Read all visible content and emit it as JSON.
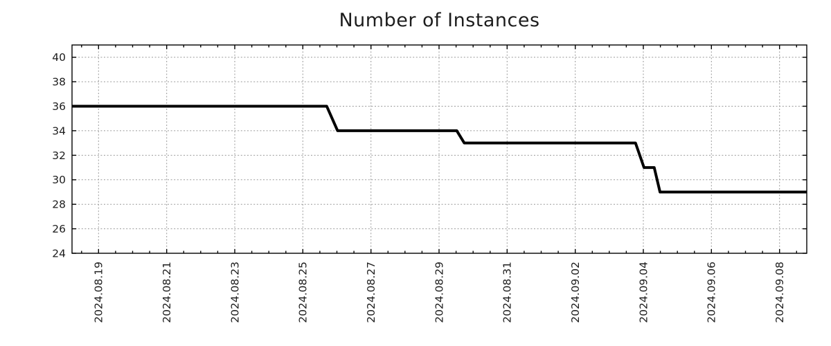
{
  "chart_data": {
    "type": "line",
    "title": "Number of Instances",
    "background": "#ffffff",
    "x_axis": {
      "epoch": "day 0 = 2024-08-19 00:00",
      "tick_labels": [
        "2024.08.19",
        "2024.08.21",
        "2024.08.23",
        "2024.08.25",
        "2024.08.27",
        "2024.08.29",
        "2024.08.31",
        "2024.09.02",
        "2024.09.04",
        "2024.09.06",
        "2024.09.08"
      ],
      "tick_days": [
        0,
        2,
        4,
        6,
        8,
        10,
        12,
        14,
        16,
        18,
        20
      ],
      "minor_tick_interval_days": 0.5,
      "range_days": [
        -0.78,
        20.8
      ]
    },
    "y_axis": {
      "ticks": [
        24,
        26,
        28,
        30,
        32,
        34,
        36,
        38,
        40
      ],
      "range": [
        24,
        41
      ]
    },
    "grid": {
      "show": true,
      "color": "#999999",
      "style": "dotted"
    },
    "frame_color": "#000000",
    "series": [
      {
        "color": "#000000",
        "width": 4,
        "points": [
          {
            "day": -0.78,
            "value": 36,
            "approx_time": "2024-08-18 05:00"
          },
          {
            "day": 6.7,
            "value": 36,
            "approx_time": "2024-08-25 17:00"
          },
          {
            "day": 7.02,
            "value": 34,
            "approx_time": "2024-08-26 00:30"
          },
          {
            "day": 10.52,
            "value": 34,
            "approx_time": "2024-08-29 12:30"
          },
          {
            "day": 10.74,
            "value": 33,
            "approx_time": "2024-08-29 18:00"
          },
          {
            "day": 15.77,
            "value": 33,
            "approx_time": "2024-09-03 18:30"
          },
          {
            "day": 16.02,
            "value": 31,
            "approx_time": "2024-09-04 00:30"
          },
          {
            "day": 16.32,
            "value": 31,
            "approx_time": "2024-09-04 07:40"
          },
          {
            "day": 16.49,
            "value": 29,
            "approx_time": "2024-09-04 11:45"
          },
          {
            "day": 20.8,
            "value": 29,
            "approx_time": "2024-09-08 19:00"
          }
        ]
      }
    ]
  }
}
